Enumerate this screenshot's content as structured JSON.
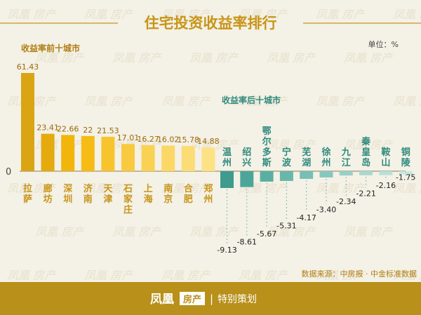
{
  "title": "住宅投资收益率排行",
  "unit": "单位：%",
  "source": "数据来源：中房报 · 中金标准数据",
  "footer": {
    "brand": "凤凰",
    "brand_tag": "房产",
    "divider": "|",
    "tagline": "特别策划"
  },
  "watermark": "凤凰 房产",
  "colors": {
    "accent": "#c8951a",
    "teal": "#3e9b8e",
    "title": "#c8951a",
    "footer_bg": "#b8901a"
  },
  "chart_data": {
    "type": "bar",
    "zero_label": "0",
    "top": {
      "label": "收益率前十城市",
      "categories": [
        "拉萨",
        "廊坊",
        "深圳",
        "济南",
        "天津",
        "石家庄",
        "上海",
        "南京",
        "合肥",
        "郑州"
      ],
      "values": [
        61.43,
        23.41,
        22.66,
        22,
        21.53,
        17.01,
        16.27,
        16.02,
        15.78,
        14.88
      ],
      "colors": [
        "#d9a512",
        "#e5aa0e",
        "#f2b50c",
        "#f6bc15",
        "#f8c42d",
        "#f9c93f",
        "#fad253",
        "#fbd865",
        "#fbdc75",
        "#fce285"
      ]
    },
    "bottom": {
      "label": "收益率后十城市",
      "categories": [
        "温州",
        "绍兴",
        "鄂尔多斯",
        "宁波",
        "芜湖",
        "徐州",
        "九江",
        "秦皇岛",
        "鞍山",
        "铜陵"
      ],
      "values": [
        -9.13,
        -8.61,
        -5.67,
        -5.31,
        -4.17,
        -3.4,
        -2.34,
        -2.21,
        -2.16,
        -1.75
      ],
      "colors": [
        "#3e9b8e",
        "#4ba699",
        "#5aafa3",
        "#68b7ab",
        "#77bfb4",
        "#87c8be",
        "#97d0c7",
        "#a7d8d0",
        "#b7e0d9",
        "#c7e8e2"
      ]
    }
  }
}
